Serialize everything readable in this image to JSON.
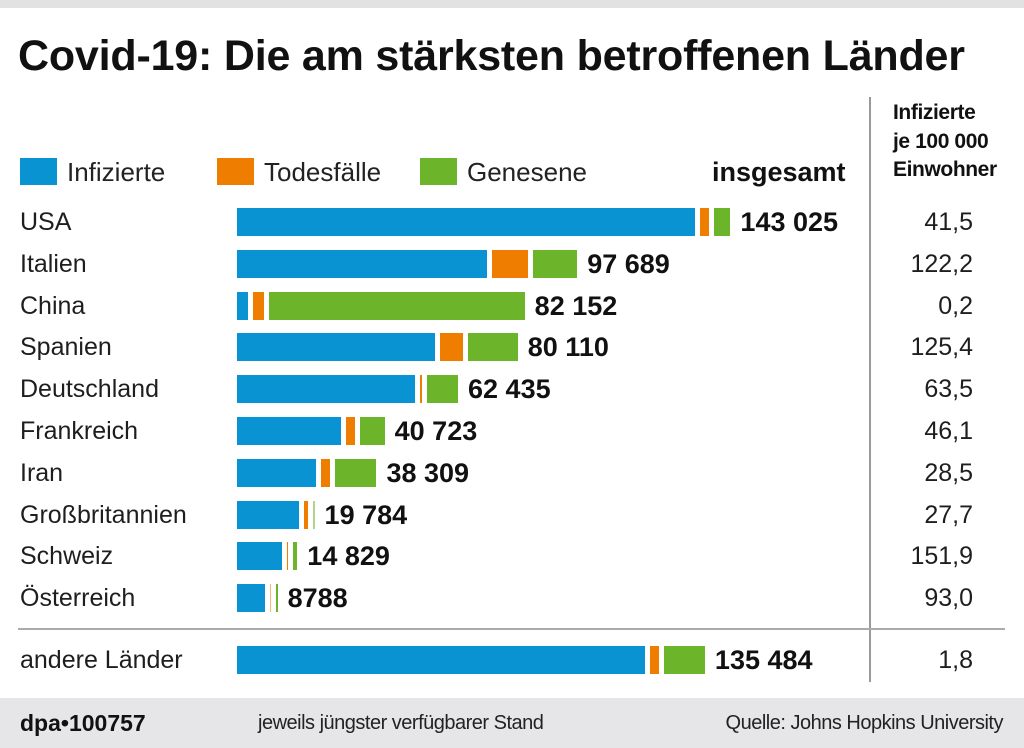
{
  "header": {
    "title": "Covid-19: Die am stärksten betroffenen Länder",
    "total_column_label": "insgesamt",
    "rate_column_label": [
      "Infizierte",
      "je 100 000",
      "Einwohner"
    ]
  },
  "chart_data": {
    "type": "bar",
    "orientation": "horizontal",
    "stacked": true,
    "title": "Covid-19: Die am stärksten betroffenen Länder",
    "xlabel": "",
    "ylabel": "",
    "xlim": [
      0,
      150000
    ],
    "grid": false,
    "legend_position": "top-left",
    "categories": [
      "USA",
      "Italien",
      "China",
      "Spanien",
      "Deutschland",
      "Frankreich",
      "Iran",
      "Großbritannien",
      "Schweiz",
      "Österreich"
    ],
    "series": [
      {
        "name": "Infizierte",
        "color": "#0a93d2",
        "values": [
          135650,
          73880,
          3250,
          58600,
          52700,
          30880,
          23278,
          18400,
          13229,
          8223
        ]
      },
      {
        "name": "Todesfälle",
        "color": "#ee7d00",
        "values": [
          2510,
          10779,
          3300,
          6800,
          540,
          2610,
          2640,
          1230,
          300,
          86
        ]
      },
      {
        "name": "Genesene",
        "color": "#6cb52a",
        "values": [
          4865,
          13030,
          75602,
          14710,
          9195,
          7233,
          12391,
          154,
          1300,
          479
        ]
      }
    ],
    "totals": [
      143025,
      97689,
      82152,
      80110,
      62435,
      40723,
      38309,
      19784,
      14829,
      8788
    ],
    "total_labels": [
      "143 025",
      "97 689",
      "82 152",
      "80 110",
      "62 435",
      "40 723",
      "38 309",
      "19 784",
      "14 829",
      "8788"
    ],
    "per_100k": [
      41.5,
      122.2,
      0.2,
      125.4,
      63.5,
      46.1,
      28.5,
      27.7,
      151.9,
      93.0
    ],
    "per_100k_labels": [
      "41,5",
      "122,2",
      "0,2",
      "125,4",
      "63,5",
      "46,1",
      "28,5",
      "27,7",
      "151,9",
      "93,0"
    ],
    "summary_row": {
      "category": "andere Länder",
      "values": [
        120600,
        2700,
        12184
      ],
      "total": 135484,
      "total_label": "135 484",
      "per_100k": 1.8,
      "per_100k_label": "1,8"
    }
  },
  "footer": {
    "id": "dpa•100757",
    "note": "jeweils jüngster verfügbarer Stand",
    "source": "Quelle: Johns Hopkins University"
  }
}
